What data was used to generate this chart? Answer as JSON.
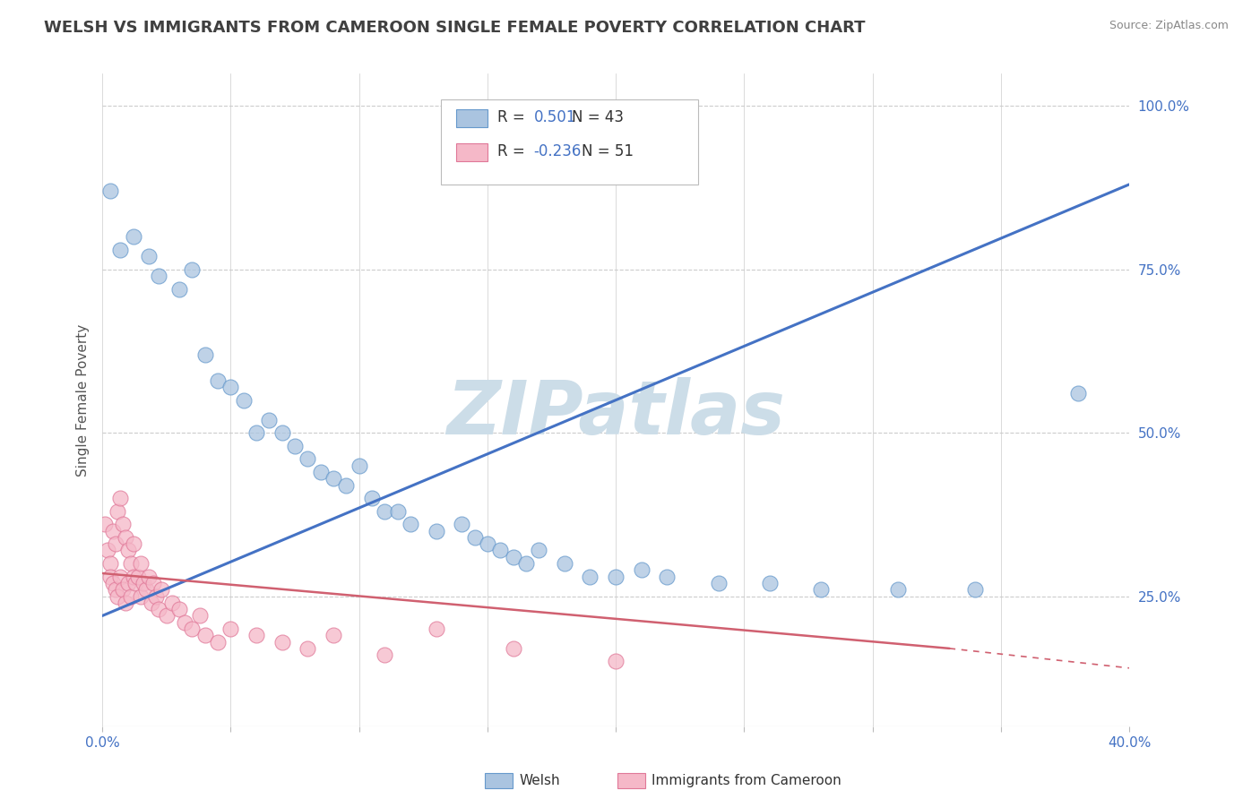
{
  "title": "WELSH VS IMMIGRANTS FROM CAMEROON SINGLE FEMALE POVERTY CORRELATION CHART",
  "source": "Source: ZipAtlas.com",
  "ylabel": "Single Female Poverty",
  "xlim": [
    0.0,
    0.4
  ],
  "ylim": [
    0.05,
    1.05
  ],
  "xticks": [
    0.0,
    0.05,
    0.1,
    0.15,
    0.2,
    0.25,
    0.3,
    0.35,
    0.4
  ],
  "xticklabels": [
    "0.0%",
    "",
    "",
    "",
    "",
    "",
    "",
    "",
    "40.0%"
  ],
  "yticks_right": [
    0.25,
    0.5,
    0.75,
    1.0
  ],
  "yticklabels_right": [
    "25.0%",
    "50.0%",
    "75.0%",
    "100.0%"
  ],
  "welsh_color": "#aac4e0",
  "welsh_edge": "#6699cc",
  "cameron_color": "#f5b8c8",
  "cameron_edge": "#e07898",
  "welsh_R": "0.501",
  "welsh_N": "43",
  "cameron_R": "-0.236",
  "cameron_N": "51",
  "trend_welsh_color": "#4472c4",
  "trend_cameron_color": "#d06070",
  "watermark": "ZIPatlas",
  "watermark_color": "#ccdde8",
  "background_color": "#ffffff",
  "grid_color": "#cccccc",
  "title_color": "#404040",
  "label_color": "#4472c4",
  "welsh_points_x": [
    0.003,
    0.007,
    0.012,
    0.018,
    0.022,
    0.03,
    0.035,
    0.04,
    0.045,
    0.05,
    0.055,
    0.06,
    0.065,
    0.07,
    0.075,
    0.08,
    0.085,
    0.09,
    0.095,
    0.1,
    0.105,
    0.11,
    0.115,
    0.12,
    0.13,
    0.14,
    0.145,
    0.15,
    0.155,
    0.16,
    0.165,
    0.17,
    0.18,
    0.19,
    0.2,
    0.21,
    0.22,
    0.24,
    0.26,
    0.28,
    0.31,
    0.34,
    0.38
  ],
  "welsh_points_y": [
    0.87,
    0.78,
    0.8,
    0.77,
    0.74,
    0.72,
    0.75,
    0.62,
    0.58,
    0.57,
    0.55,
    0.5,
    0.52,
    0.5,
    0.48,
    0.46,
    0.44,
    0.43,
    0.42,
    0.45,
    0.4,
    0.38,
    0.38,
    0.36,
    0.35,
    0.36,
    0.34,
    0.33,
    0.32,
    0.31,
    0.3,
    0.32,
    0.3,
    0.28,
    0.28,
    0.29,
    0.28,
    0.27,
    0.27,
    0.26,
    0.26,
    0.26,
    0.56
  ],
  "cameron_points_x": [
    0.001,
    0.002,
    0.003,
    0.003,
    0.004,
    0.004,
    0.005,
    0.005,
    0.006,
    0.006,
    0.007,
    0.007,
    0.008,
    0.008,
    0.009,
    0.009,
    0.01,
    0.01,
    0.011,
    0.011,
    0.012,
    0.012,
    0.013,
    0.014,
    0.015,
    0.015,
    0.016,
    0.017,
    0.018,
    0.019,
    0.02,
    0.021,
    0.022,
    0.023,
    0.025,
    0.027,
    0.03,
    0.032,
    0.035,
    0.038,
    0.04,
    0.045,
    0.05,
    0.06,
    0.07,
    0.08,
    0.09,
    0.11,
    0.13,
    0.16,
    0.2
  ],
  "cameron_points_y": [
    0.36,
    0.32,
    0.3,
    0.28,
    0.35,
    0.27,
    0.33,
    0.26,
    0.38,
    0.25,
    0.4,
    0.28,
    0.36,
    0.26,
    0.34,
    0.24,
    0.32,
    0.27,
    0.3,
    0.25,
    0.28,
    0.33,
    0.27,
    0.28,
    0.3,
    0.25,
    0.27,
    0.26,
    0.28,
    0.24,
    0.27,
    0.25,
    0.23,
    0.26,
    0.22,
    0.24,
    0.23,
    0.21,
    0.2,
    0.22,
    0.19,
    0.18,
    0.2,
    0.19,
    0.18,
    0.17,
    0.19,
    0.16,
    0.2,
    0.17,
    0.15
  ],
  "welsh_trend_x0": 0.0,
  "welsh_trend_y0": 0.22,
  "welsh_trend_x1": 0.4,
  "welsh_trend_y1": 0.88,
  "cam_trend_x0": 0.0,
  "cam_trend_y0": 0.285,
  "cam_trend_x1": 0.33,
  "cam_trend_y1": 0.17,
  "cam_trend_dashed_x0": 0.33,
  "cam_trend_dashed_y0": 0.17,
  "cam_trend_dashed_x1": 0.4,
  "cam_trend_dashed_y1": 0.14
}
